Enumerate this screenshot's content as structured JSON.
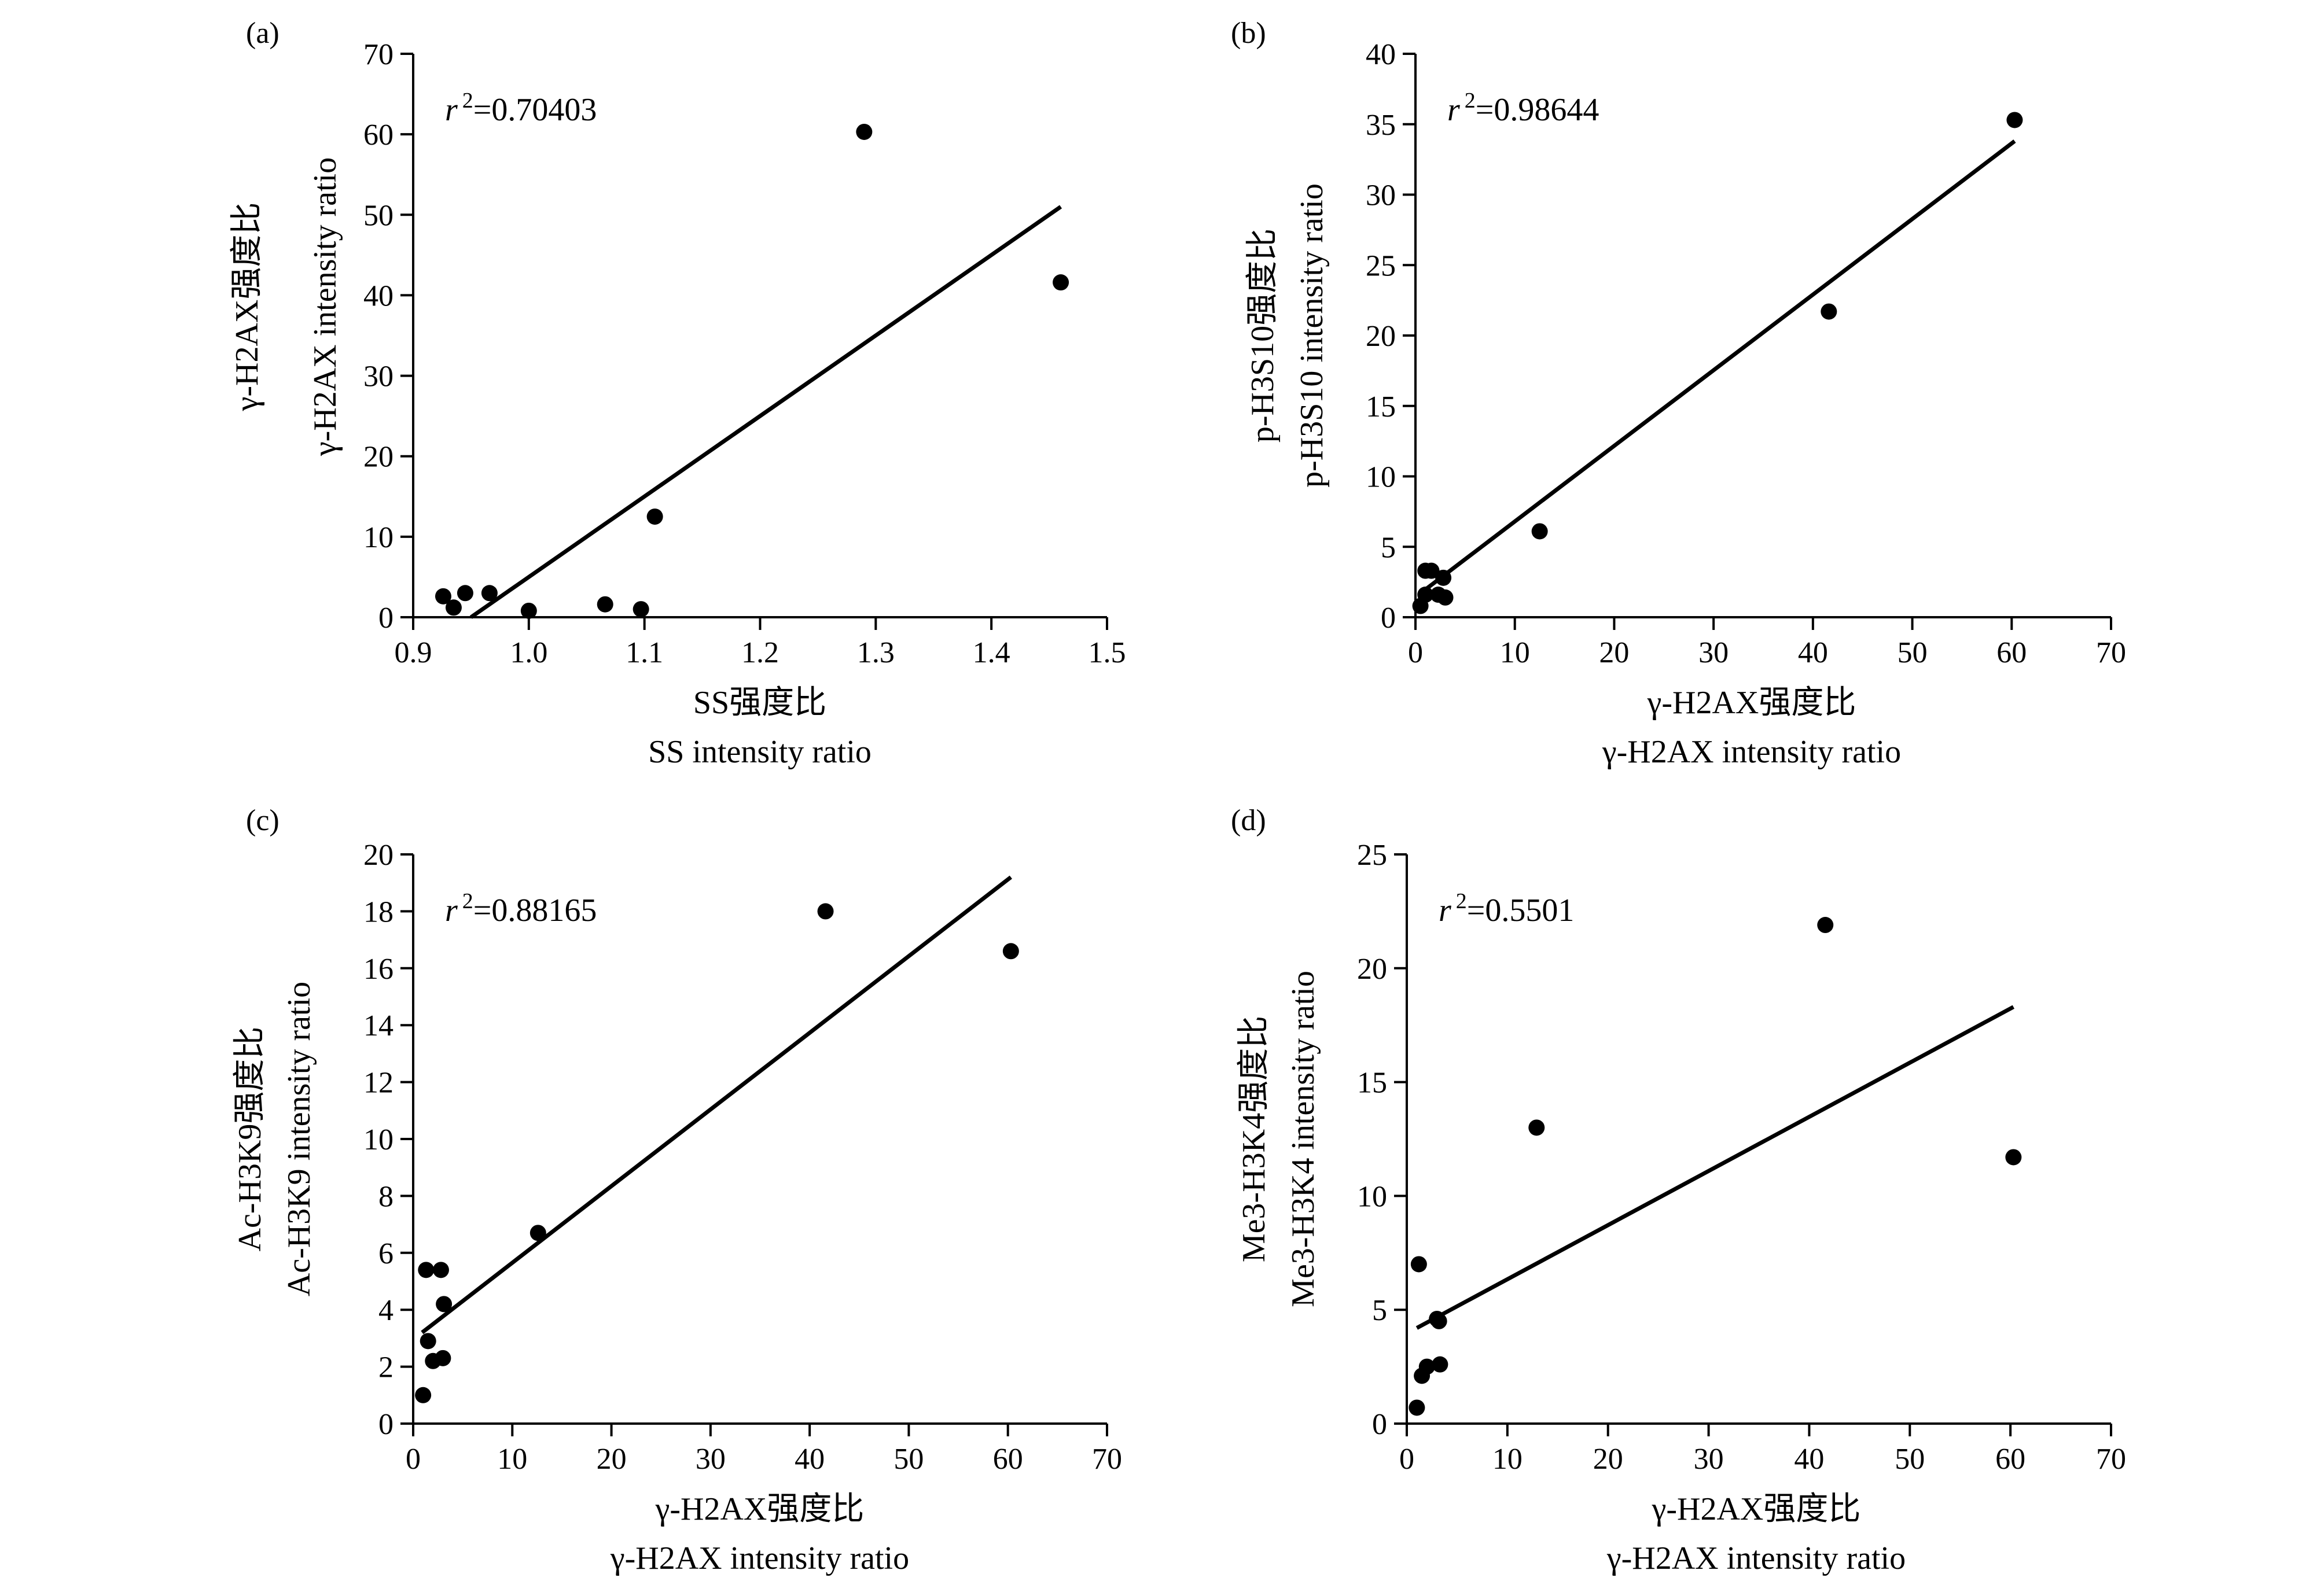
{
  "chart_data": [
    {
      "panel": "(a)",
      "type": "scatter",
      "annotation": {
        "r_symbol": "r",
        "sup": "2",
        "value": "=0.70403"
      },
      "xlabel": [
        "SS强度比",
        "SS intensity ratio"
      ],
      "ylabel": [
        "γ-H2AX强度比",
        "γ-H2AX intensity ratio"
      ],
      "xlim": [
        0.9,
        1.5
      ],
      "ylim": [
        0,
        70
      ],
      "xticks": [
        0.9,
        1.0,
        1.1,
        1.2,
        1.3,
        1.4,
        1.5
      ],
      "xtick_labels": [
        "0.9",
        "1.0",
        "1.1",
        "1.2",
        "1.3",
        "1.4",
        "1.5"
      ],
      "yticks": [
        0,
        10,
        20,
        30,
        40,
        50,
        60,
        70
      ],
      "ytick_labels": [
        "0",
        "10",
        "20",
        "30",
        "40",
        "50",
        "60",
        "70"
      ],
      "points": [
        [
          0.926,
          2.6
        ],
        [
          0.935,
          1.2
        ],
        [
          0.945,
          3.0
        ],
        [
          0.966,
          3.0
        ],
        [
          1.0,
          0.8
        ],
        [
          1.066,
          1.6
        ],
        [
          1.097,
          1.0
        ],
        [
          1.109,
          12.5
        ],
        [
          1.29,
          60.3
        ],
        [
          1.46,
          41.6
        ]
      ],
      "fit_line": [
        [
          0.95,
          0.0
        ],
        [
          1.46,
          51.0
        ]
      ]
    },
    {
      "panel": "(b)",
      "type": "scatter",
      "annotation": {
        "r_symbol": "r",
        "sup": "2",
        "value": "=0.98644"
      },
      "xlabel": [
        "γ-H2AX强度比",
        "γ-H2AX intensity ratio"
      ],
      "ylabel": [
        "p-H3S10强度比",
        "p-H3S10 intensity ratio"
      ],
      "xlim": [
        0,
        70
      ],
      "ylim": [
        0,
        40
      ],
      "xticks": [
        0,
        10,
        20,
        30,
        40,
        50,
        60,
        70
      ],
      "xtick_labels": [
        "0",
        "10",
        "20",
        "30",
        "40",
        "50",
        "60",
        "70"
      ],
      "yticks": [
        0,
        5,
        10,
        15,
        20,
        25,
        30,
        35,
        40
      ],
      "ytick_labels": [
        "0",
        "5",
        "10",
        "15",
        "20",
        "25",
        "30",
        "35",
        "40"
      ],
      "points": [
        [
          0.5,
          0.8
        ],
        [
          1.0,
          1.6
        ],
        [
          1.0,
          3.3
        ],
        [
          1.6,
          3.3
        ],
        [
          2.3,
          1.6
        ],
        [
          2.8,
          2.8
        ],
        [
          3.0,
          1.4
        ],
        [
          12.5,
          6.1
        ],
        [
          41.6,
          21.7
        ],
        [
          60.3,
          35.3
        ]
      ],
      "fit_line": [
        [
          0.5,
          1.7
        ],
        [
          60.3,
          33.8
        ]
      ]
    },
    {
      "panel": "(c)",
      "type": "scatter",
      "annotation": {
        "r_symbol": "r",
        "sup": "2",
        "value": "=0.88165"
      },
      "xlabel": [
        "γ-H2AX强度比",
        "γ-H2AX intensity ratio"
      ],
      "ylabel": [
        "Ac-H3K9强度比",
        "Ac-H3K9 intensity ratio"
      ],
      "xlim": [
        0,
        70
      ],
      "ylim": [
        0,
        20
      ],
      "xticks": [
        0,
        10,
        20,
        30,
        40,
        50,
        60,
        70
      ],
      "xtick_labels": [
        "0",
        "10",
        "20",
        "30",
        "40",
        "50",
        "60",
        "70"
      ],
      "yticks": [
        0,
        2,
        4,
        6,
        8,
        10,
        12,
        14,
        16,
        18,
        20
      ],
      "ytick_labels": [
        "0",
        "2",
        "4",
        "6",
        "8",
        "10",
        "12",
        "14",
        "16",
        "18",
        "20"
      ],
      "points": [
        [
          1.0,
          1.0
        ],
        [
          1.3,
          5.4
        ],
        [
          1.5,
          2.9
        ],
        [
          2.0,
          2.2
        ],
        [
          2.8,
          5.4
        ],
        [
          3.0,
          2.3
        ],
        [
          3.1,
          4.2
        ],
        [
          12.6,
          6.7
        ],
        [
          41.6,
          18.0
        ],
        [
          60.3,
          16.6
        ]
      ],
      "fit_line": [
        [
          0.9,
          3.2
        ],
        [
          60.3,
          19.2
        ]
      ]
    },
    {
      "panel": "(d)",
      "type": "scatter",
      "annotation": {
        "r_symbol": "r",
        "sup": "2",
        "value": "=0.5501"
      },
      "xlabel": [
        "γ-H2AX强度比",
        "γ-H2AX intensity ratio"
      ],
      "ylabel": [
        "Me3-H3K4强度比",
        "Me3-H3K4 intensity ratio"
      ],
      "xlim": [
        0,
        70
      ],
      "ylim": [
        0,
        25
      ],
      "xticks": [
        0,
        10,
        20,
        30,
        40,
        50,
        60,
        70
      ],
      "xtick_labels": [
        "0",
        "10",
        "20",
        "30",
        "40",
        "50",
        "60",
        "70"
      ],
      "yticks": [
        0,
        5,
        10,
        15,
        20,
        25
      ],
      "ytick_labels": [
        "0",
        "5",
        "10",
        "15",
        "20",
        "25"
      ],
      "points": [
        [
          1.0,
          0.7
        ],
        [
          1.2,
          7.0
        ],
        [
          1.5,
          2.1
        ],
        [
          2.0,
          2.5
        ],
        [
          3.0,
          4.6
        ],
        [
          3.2,
          4.5
        ],
        [
          3.3,
          2.6
        ],
        [
          12.9,
          13.0
        ],
        [
          41.6,
          21.9
        ],
        [
          60.3,
          11.7
        ]
      ],
      "fit_line": [
        [
          1.0,
          4.2
        ],
        [
          60.3,
          18.3
        ]
      ]
    }
  ]
}
